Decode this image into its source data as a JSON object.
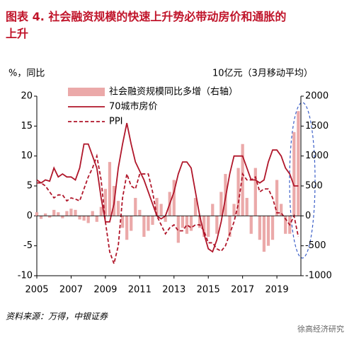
{
  "title": "图表 4. 社会融资规模的快速上升势必带动房价和通胀的上升",
  "source": "资料来源：万得，中银证券",
  "watermark": "徐高经济研究",
  "chart_data": {
    "type": "combo",
    "y_label": "%，同比",
    "y2_label": "10亿元（3月移动平均）",
    "x": [
      2005,
      2005.25,
      2005.5,
      2005.75,
      2006,
      2006.25,
      2006.5,
      2006.75,
      2007,
      2007.25,
      2007.5,
      2007.75,
      2008,
      2008.25,
      2008.5,
      2008.75,
      2009,
      2009.25,
      2009.5,
      2009.75,
      2010,
      2010.25,
      2010.5,
      2010.75,
      2011,
      2011.25,
      2011.5,
      2011.75,
      2012,
      2012.25,
      2012.5,
      2012.75,
      2013,
      2013.25,
      2013.5,
      2013.75,
      2014,
      2014.25,
      2014.5,
      2014.75,
      2015,
      2015.25,
      2015.5,
      2015.75,
      2016,
      2016.25,
      2016.5,
      2016.75,
      2017,
      2017.25,
      2017.5,
      2017.75,
      2018,
      2018.25,
      2018.5,
      2018.75,
      2019,
      2019.25,
      2019.5,
      2019.75,
      2020,
      2020.25
    ],
    "series": [
      {
        "name": "社会融资规模同比多增（右轴）",
        "type": "bar",
        "axis": "y2",
        "color": "#eba9a9",
        "values": [
          60,
          -50,
          40,
          -30,
          100,
          60,
          -40,
          80,
          120,
          100,
          -60,
          -80,
          -120,
          80,
          -100,
          150,
          450,
          900,
          500,
          250,
          -200,
          -400,
          -250,
          300,
          100,
          -350,
          -250,
          -150,
          300,
          200,
          -100,
          400,
          600,
          -450,
          -200,
          -300,
          -250,
          300,
          -200,
          -350,
          -350,
          200,
          -300,
          400,
          700,
          -350,
          200,
          800,
          1200,
          300,
          -300,
          800,
          -400,
          -600,
          -500,
          -400,
          600,
          200,
          -300,
          -300,
          1400,
          1750
        ]
      },
      {
        "name": "70城市房价",
        "type": "line",
        "axis": "y",
        "color": "#b0162a",
        "dash": false,
        "values": [
          6,
          5.5,
          6,
          5.8,
          8,
          6.5,
          7,
          6.5,
          6.5,
          6,
          8,
          12,
          12,
          10,
          8,
          3,
          -1,
          -1,
          2,
          8,
          12,
          15.5,
          12,
          9,
          7.5,
          6,
          4,
          2,
          0,
          -0.5,
          0,
          2,
          4,
          7,
          9,
          9,
          8,
          4,
          0,
          -3,
          -5.5,
          -6,
          -4,
          -1,
          3,
          7,
          10,
          10,
          10,
          8,
          6,
          6,
          5.5,
          6,
          9,
          11,
          11,
          10,
          8,
          7,
          5,
          5
        ]
      },
      {
        "name": "PPI",
        "type": "line",
        "axis": "y",
        "color": "#b0162a",
        "dash": true,
        "values": [
          5.5,
          5.5,
          5,
          4,
          3,
          3.5,
          3.5,
          2.5,
          3,
          2.8,
          2.5,
          4.5,
          6.5,
          8,
          10,
          6,
          -1,
          -6,
          -8,
          -5,
          3,
          7,
          5,
          4.5,
          7,
          7,
          7,
          4,
          0,
          -1.5,
          -3,
          -2,
          -1.5,
          -2.5,
          -2.5,
          -1.5,
          -2,
          -1.5,
          -1.5,
          -2.5,
          -4.5,
          -4.5,
          -5.5,
          -5.9,
          -5,
          -3,
          -1,
          2,
          7,
          6,
          6,
          6.5,
          4,
          4.5,
          4.5,
          3,
          0.5,
          0.5,
          -0.5,
          -1.5,
          0,
          -3.5
        ]
      }
    ],
    "xlim": [
      2005,
      2020.4
    ],
    "xticks": [
      2005,
      2007,
      2009,
      2011,
      2013,
      2015,
      2017,
      2019
    ],
    "ylim": [
      -10,
      20
    ],
    "yticks": [
      -10,
      -5,
      0,
      5,
      10,
      15,
      20
    ],
    "y2lim": [
      -1000,
      2000
    ],
    "y2ticks": [
      -1000,
      -500,
      0,
      500,
      1000,
      1500,
      2000
    ]
  }
}
